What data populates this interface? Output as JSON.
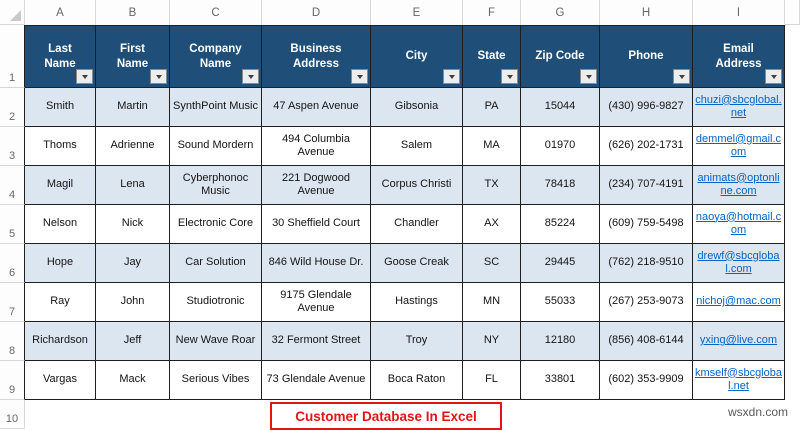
{
  "sheet": {
    "column_letters": [
      "A",
      "B",
      "C",
      "D",
      "E",
      "F",
      "G",
      "H",
      "I"
    ],
    "row_numbers": [
      "1",
      "2",
      "3",
      "4",
      "5",
      "6",
      "7",
      "8",
      "9",
      "10"
    ]
  },
  "table": {
    "headers": [
      "Last\nName",
      "First\nName",
      "Company\nName",
      "Business\nAddress",
      "City",
      "State",
      "Zip Code",
      "Phone",
      "Email\nAddress"
    ],
    "rows": [
      [
        "Smith",
        "Martin",
        "SynthPoint Music",
        "47 Aspen Avenue",
        "Gibsonia",
        "PA",
        "15044",
        "(430) 996-9827",
        "chuzi@sbcglobal.net"
      ],
      [
        "Thoms",
        "Adrienne",
        "Sound Mordern",
        "494 Columbia Avenue",
        "Salem",
        "MA",
        "01970",
        "(626) 202-1731",
        "demmel@gmail.com"
      ],
      [
        "Magil",
        "Lena",
        "Cyberphonoc Music",
        "221 Dogwood Avenue",
        "Corpus Christi",
        "TX",
        "78418",
        "(234) 707-4191",
        "animats@optonline.com"
      ],
      [
        "Nelson",
        "Nick",
        "Electronic Core",
        "30 Sheffield Court",
        "Chandler",
        "AX",
        "85224",
        "(609) 759-5498",
        "naoya@hotmail.com"
      ],
      [
        "Hope",
        "Jay",
        "Car Solution",
        "846 Wild House Dr.",
        "Goose Creak",
        "SC",
        "29445",
        "(762) 218-9510",
        "drewf@sbcglobal.com"
      ],
      [
        "Ray",
        "John",
        "Studiotronic",
        "9175 Glendale Avenue",
        "Hastings",
        "MN",
        "55033",
        "(267) 253-9073",
        "nichoj@mac.com"
      ],
      [
        "Richardson",
        "Jeff",
        "New Wave Roar",
        "32 Fermont Street",
        "Troy",
        "NY",
        "12180",
        "(856) 408-6144",
        "yxing@live.com"
      ],
      [
        "Vargas",
        "Mack",
        "Serious Vibes",
        "73 Glendale Avenue",
        "Boca Raton",
        "FL",
        "33801",
        "(602) 353-9909",
        "kmself@sbcglobal.net"
      ]
    ],
    "email_col_index": 8,
    "nowrap_cols": [
      5,
      6,
      7
    ],
    "banded_row_indexes": [
      0,
      2,
      4,
      6
    ]
  },
  "title_box": {
    "label": "Customer Database In Excel"
  },
  "watermark": {
    "label": "wsxdn.com"
  },
  "colors": {
    "header_bg": "#1f4e78",
    "band_blue": "#dce6f1",
    "border_dark": "#1f1f1f",
    "link_blue": "#0563c1",
    "accent_red": "#e31414"
  }
}
